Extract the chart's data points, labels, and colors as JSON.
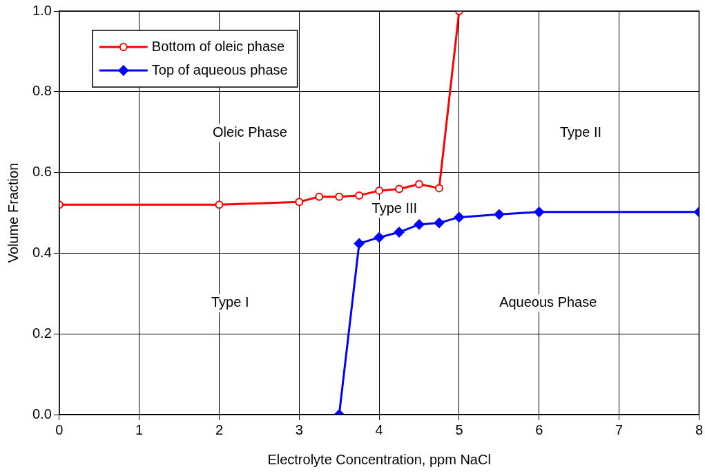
{
  "chart_data": {
    "type": "line",
    "xlabel": "Electrolyte Concentration, ppm NaCl",
    "ylabel": "Volume Fraction",
    "xlim": [
      0,
      8
    ],
    "xticks": [
      0,
      1,
      2,
      3,
      4,
      5,
      6,
      7,
      8
    ],
    "ylim": [
      0,
      1
    ],
    "yticks": [
      {
        "value": 0,
        "label": "0.0"
      },
      {
        "value": 0.2,
        "label": "0.2"
      },
      {
        "value": 0.4,
        "label": "0.4"
      },
      {
        "value": 0.6,
        "label": "0.6"
      },
      {
        "value": 0.8,
        "label": "0.8"
      },
      {
        "value": 1,
        "label": "1.0"
      }
    ],
    "grid": true,
    "legend": "top left",
    "line_style": "solid",
    "series": [
      {
        "name": "Bottom of oleic phase",
        "color": "#ff0000",
        "marker": "circle",
        "x": [
          0,
          2,
          3,
          3.25,
          3.5,
          3.75,
          4,
          4.25,
          4.5,
          4.75,
          5
        ],
        "values": [
          0.52,
          0.52,
          0.527,
          0.54,
          0.54,
          0.543,
          0.555,
          0.559,
          0.571,
          0.561,
          1.0
        ]
      },
      {
        "name": "Top of aqueous phase",
        "color": "#0000ff",
        "marker": "diamond",
        "x": [
          3.5,
          3.75,
          4,
          4.25,
          4.5,
          4.75,
          5,
          5.5,
          6,
          8
        ],
        "values": [
          0,
          0.424,
          0.439,
          0.452,
          0.471,
          0.475,
          0.489,
          0.496,
          0.502,
          0.502
        ]
      }
    ],
    "annotations": [
      "Oleic Phase",
      "Type II",
      "Type III",
      "Type I",
      "Aqueous Phase"
    ]
  }
}
